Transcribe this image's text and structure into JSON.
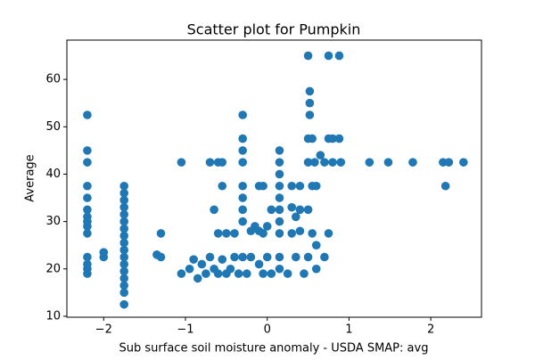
{
  "chart_data": {
    "type": "scatter",
    "title": "Scatter plot for Pumpkin",
    "x_label": "Sub surface soil moisture anomaly - USDA SMAP: avg",
    "y_label": "Average",
    "xlim": [
      -2.45,
      2.62
    ],
    "ylim": [
      9.8,
      68.3
    ],
    "xticks": [
      {
        "value": -2,
        "label": "−2"
      },
      {
        "value": -1,
        "label": "−1"
      },
      0,
      1,
      2
    ],
    "yticks": [
      10,
      20,
      30,
      40,
      50,
      60
    ],
    "grid": false,
    "series": [
      {
        "color": "#1f77b4",
        "x": [
          -2.2,
          -2.2,
          -2.2,
          -2.2,
          -2.2,
          -2.2,
          -2.2,
          -2.2,
          -2.2,
          -2.2,
          -2.2,
          -2.2,
          -2.2,
          -2.2,
          -2.0,
          -2.0,
          -1.75,
          -1.75,
          -1.75,
          -1.75,
          -1.75,
          -1.75,
          -1.75,
          -1.75,
          -1.75,
          -1.75,
          -1.75,
          -1.75,
          -1.75,
          -1.75,
          -1.75,
          -1.75,
          -1.75,
          -1.3,
          -1.3,
          -1.35,
          -1.05,
          -1.05,
          -0.95,
          -0.9,
          -0.85,
          -0.8,
          -0.75,
          -0.7,
          -0.65,
          -0.6,
          -0.55,
          -0.5,
          -0.45,
          -0.4,
          -0.35,
          -0.7,
          -0.6,
          -0.55,
          -0.65,
          -0.55,
          -0.6,
          -0.5,
          -0.4,
          -0.3,
          -0.3,
          -0.3,
          -0.3,
          -0.3,
          -0.3,
          -0.3,
          -0.3,
          -0.3,
          -0.2,
          -0.15,
          -0.1,
          -0.05,
          0,
          -0.2,
          -0.1,
          0,
          -0.25,
          -0.05,
          0.05,
          -0.1,
          -0.05,
          0.05,
          0.15,
          0.15,
          0.15,
          0.15,
          0.15,
          0.15,
          0.15,
          0.15,
          0.15,
          0.15,
          0.25,
          0.3,
          0.35,
          0.4,
          0.3,
          0.4,
          0.3,
          0.4,
          0.35,
          0.45,
          0.5,
          0.52,
          0.52,
          0.52,
          0.5,
          0.55,
          0.5,
          0.55,
          0.5,
          0.55,
          0.6,
          0.5,
          0.6,
          0.58,
          0.6,
          0.65,
          0.7,
          0.75,
          0.8,
          0.88,
          0.7,
          0.75,
          0.8,
          0.9,
          0.75,
          0.88,
          1.25,
          1.48,
          1.78,
          2.15,
          2.22,
          2.4,
          2.18
        ],
        "values": [
          19,
          20,
          21,
          22.5,
          27.5,
          29,
          30,
          31,
          32.5,
          35,
          37.5,
          42.5,
          45,
          52.5,
          22.5,
          23.5,
          12.5,
          15,
          16.5,
          18,
          19.5,
          21,
          22.5,
          24,
          25.5,
          27,
          28.5,
          30,
          31.5,
          33,
          34.5,
          36,
          37.5,
          22.5,
          27.5,
          23,
          42.5,
          19,
          20,
          22,
          18,
          21,
          19,
          22.5,
          20,
          19,
          22,
          19,
          20,
          22.5,
          19,
          42.5,
          42.5,
          42.5,
          32.5,
          37.5,
          27.5,
          27.5,
          27.5,
          52.5,
          47.5,
          45,
          42.5,
          37.5,
          35,
          32.5,
          30,
          22.5,
          28,
          29,
          28,
          27.5,
          29,
          22.5,
          21,
          22.5,
          19,
          19,
          19,
          37.5,
          37.5,
          32.5,
          45,
          42.5,
          40,
          37.5,
          35,
          32.5,
          30,
          27.5,
          22.5,
          20,
          19,
          33,
          31,
          32.5,
          37.5,
          37.5,
          27.5,
          28,
          22.5,
          19,
          65,
          57.5,
          55,
          52.5,
          47.5,
          47.5,
          42.5,
          37.5,
          32.5,
          27.5,
          25,
          22.5,
          20,
          42.5,
          37.5,
          44,
          42.5,
          47.5,
          47.5,
          47.5,
          22.5,
          27.5,
          42.5,
          42.5,
          65,
          65,
          42.5,
          42.5,
          42.5,
          42.5,
          42.5,
          42.5,
          37.5
        ]
      }
    ]
  }
}
